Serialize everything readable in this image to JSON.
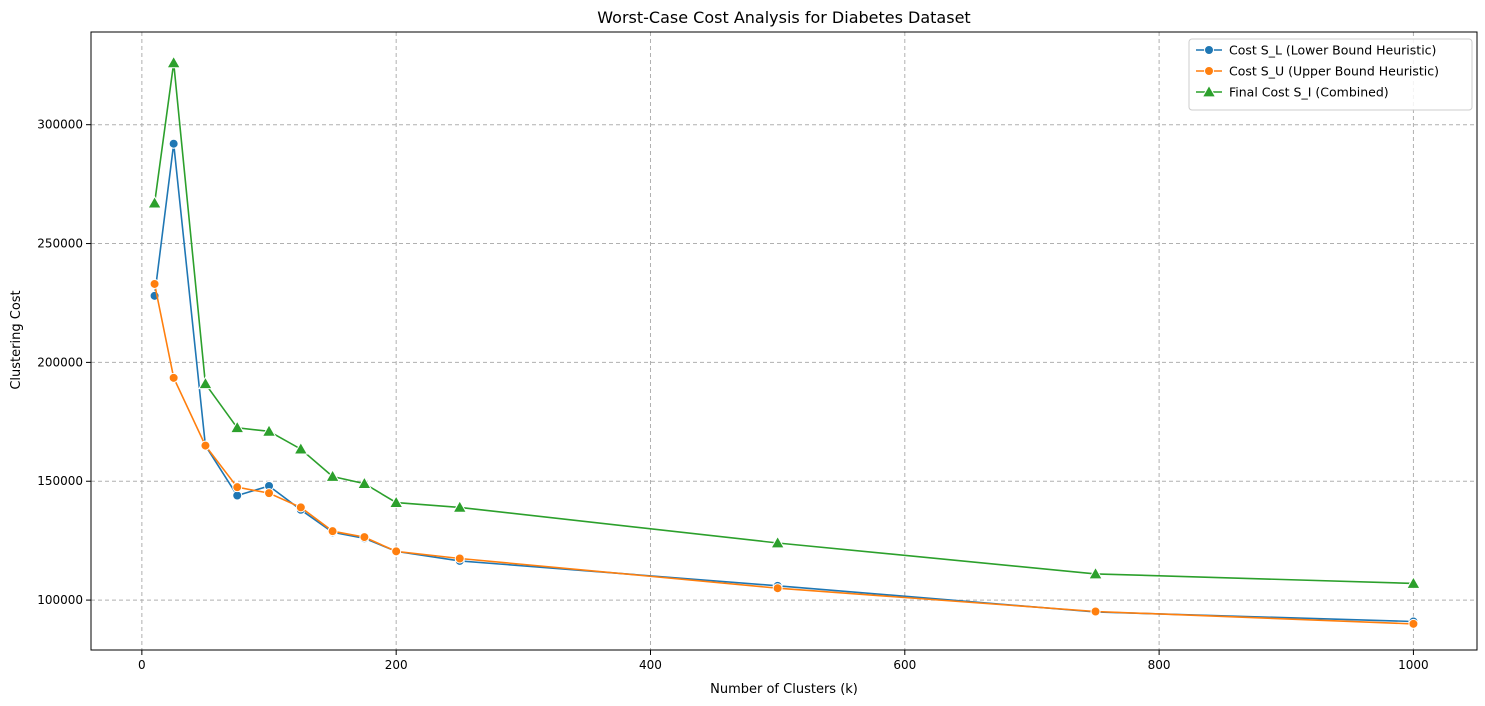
{
  "chart_data": {
    "type": "line",
    "title": "Worst-Case Cost Analysis for Diabetes Dataset",
    "xlabel": "Number of Clusters (k)",
    "ylabel": "Clustering Cost",
    "xlim": [
      -40,
      1050
    ],
    "ylim": [
      79000,
      339000
    ],
    "xticks": [
      0,
      200,
      400,
      600,
      800,
      1000
    ],
    "yticks": [
      100000,
      150000,
      200000,
      250000,
      300000
    ],
    "xtick_labels": [
      "0",
      "200",
      "400",
      "600",
      "800",
      "1000"
    ],
    "ytick_labels": [
      "100000",
      "150000",
      "200000",
      "250000",
      "300000"
    ],
    "grid": true,
    "legend_position": "top-right",
    "x": [
      10,
      25,
      50,
      75,
      100,
      125,
      150,
      175,
      200,
      250,
      500,
      750,
      1000
    ],
    "series": [
      {
        "name": "Cost S_L (Lower Bound Heuristic)",
        "color": "#1f77b4",
        "marker": "circle",
        "values": [
          228000,
          292000,
          165000,
          144000,
          148000,
          138000,
          128500,
          126000,
          120500,
          116500,
          106000,
          95000,
          91000
        ]
      },
      {
        "name": "Cost S_U (Upper Bound Heuristic)",
        "color": "#ff7f0e",
        "marker": "circle",
        "values": [
          233000,
          193500,
          165000,
          147500,
          145000,
          139000,
          129000,
          126500,
          120500,
          117500,
          105000,
          95200,
          90000
        ]
      },
      {
        "name": "Final Cost S_I (Combined)",
        "color": "#2ca02c",
        "marker": "triangle",
        "values": [
          267000,
          326000,
          191000,
          172500,
          171000,
          163500,
          152000,
          149000,
          141000,
          139000,
          124000,
          111000,
          107000
        ]
      }
    ]
  }
}
